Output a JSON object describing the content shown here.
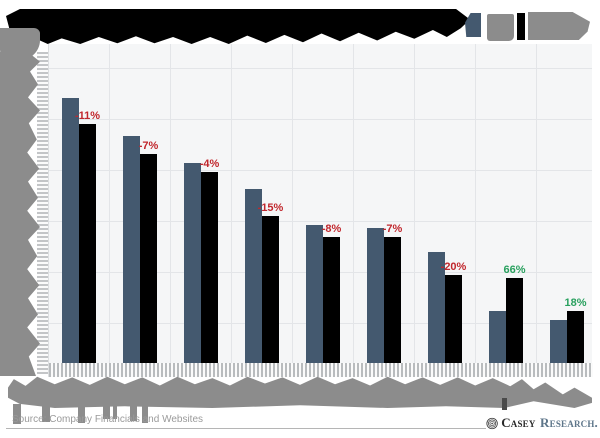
{
  "chart_data": {
    "type": "bar",
    "title": "",
    "title_obscured": true,
    "xlabel": "",
    "ylabel": "",
    "axis_labels_obscured": true,
    "categories": [
      "",
      "",
      "",
      "",
      "",
      "",
      "",
      "",
      ""
    ],
    "series": [
      {
        "name": "",
        "color": "#44596f",
        "values": [
          90,
          77,
          68,
          59,
          47,
          46,
          38,
          18,
          15
        ]
      },
      {
        "name": "",
        "color": "#000000",
        "values": [
          81,
          71,
          65,
          50,
          43,
          43,
          30,
          29,
          18
        ]
      }
    ],
    "value_scale_note": "arbitrary units estimated from unlabeled gridlines",
    "ylim": [
      0,
      105
    ],
    "grid": true,
    "legend_position": "top-right",
    "change_labels": [
      {
        "text": "-11%",
        "direction": "decrease"
      },
      {
        "text": "-7%",
        "direction": "decrease"
      },
      {
        "text": "-4%",
        "direction": "decrease"
      },
      {
        "text": "-15%",
        "direction": "decrease"
      },
      {
        "text": "-8%",
        "direction": "decrease"
      },
      {
        "text": "-7%",
        "direction": "decrease"
      },
      {
        "text": "-20%",
        "direction": "decrease"
      },
      {
        "text": "66%",
        "direction": "increase"
      },
      {
        "text": "18%",
        "direction": "increase"
      }
    ]
  },
  "colors": {
    "bar_blue": "#44596f",
    "bar_black": "#000000",
    "label_decrease": "#c1272d",
    "label_increase": "#28a05e",
    "plot_background": "#f5f6f7",
    "gridline": "#e3e5e8",
    "redaction_gray": "#8c8c8c",
    "redaction_black": "#000000"
  },
  "footer": {
    "source": "Source: Company Financials and Websites",
    "brand": {
      "word1": "Casey",
      "word2": "Research."
    }
  }
}
